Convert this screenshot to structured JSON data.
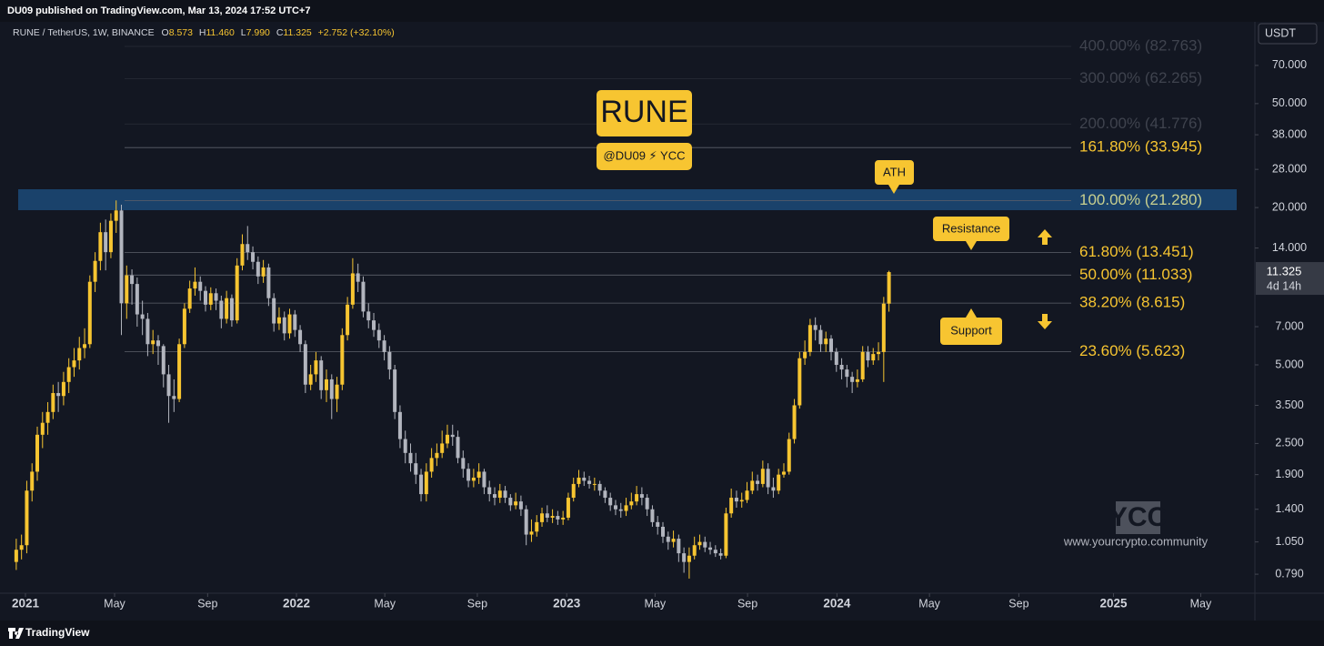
{
  "header": {
    "publisher": "DU09 published on TradingView.com, Mar 13, 2024 17:52 UTC+7"
  },
  "chart_data": {
    "type": "candlestick",
    "symbol": "RUNE / TetherUS, 1W, BINANCE",
    "ohlc_legend": [
      {
        "key": "O",
        "text": "8.573"
      },
      {
        "key": "H",
        "text": "11.460"
      },
      {
        "key": "L",
        "text": "7.990"
      },
      {
        "key": "C",
        "text": "11.325"
      }
    ],
    "change": "+2.752 (+32.10%)",
    "currency": "USDT",
    "up_color": "#f7c531",
    "down_color": "#b2b5be",
    "log_scale": true,
    "ylim": [
      0.668,
      102.8
    ],
    "yticks": [
      {
        "value": 70,
        "label": "70.000"
      },
      {
        "value": 50,
        "label": "50.000"
      },
      {
        "value": 38,
        "label": "38.000"
      },
      {
        "value": 28,
        "label": "28.000"
      },
      {
        "value": 20,
        "label": "20.000"
      },
      {
        "value": 14,
        "label": "14.000"
      },
      {
        "value": 7,
        "label": "7.000"
      },
      {
        "value": 5,
        "label": "5.000"
      },
      {
        "value": 3.5,
        "label": "3.500"
      },
      {
        "value": 2.5,
        "label": "2.500"
      },
      {
        "value": 1.9,
        "label": "1.900"
      },
      {
        "value": 1.4,
        "label": "1.400"
      },
      {
        "value": 1.05,
        "label": "1.050"
      },
      {
        "value": 0.79,
        "label": "0.790"
      }
    ],
    "last_price": 11.325,
    "countdown": "4d 14h",
    "xlim": [
      -2.4,
      235.6
    ],
    "xticks": [
      {
        "value": 1.75,
        "label": "2021"
      },
      {
        "value": 18.7,
        "label": "May"
      },
      {
        "value": 36.4,
        "label": "Sep"
      },
      {
        "value": 53.3,
        "label": "2022"
      },
      {
        "value": 70.1,
        "label": "May"
      },
      {
        "value": 87.7,
        "label": "Sep"
      },
      {
        "value": 104.7,
        "label": "2023"
      },
      {
        "value": 121.5,
        "label": "May"
      },
      {
        "value": 139.1,
        "label": "Sep"
      },
      {
        "value": 156.1,
        "label": "2024"
      },
      {
        "value": 173.7,
        "label": "May"
      },
      {
        "value": 190.7,
        "label": "Sep"
      },
      {
        "value": 208.7,
        "label": "2025"
      },
      {
        "value": 225.3,
        "label": "May"
      }
    ],
    "open": [
      0.88,
      0.98,
      1.02,
      1.65,
      1.95,
      2.7,
      3.0,
      3.3,
      3.9,
      3.8,
      4.3,
      4.9,
      5.2,
      5.8,
      6.0,
      10.4,
      12.5,
      16.1,
      13.5,
      17.8,
      19.5,
      8.6,
      11.0,
      10.2,
      7.8,
      7.5,
      6.0,
      6.2,
      5.9,
      4.6,
      3.8,
      3.7,
      6.0,
      8.2,
      9.8,
      10.4,
      9.6,
      8.5,
      9.4,
      8.8,
      7.5,
      9.0,
      7.4,
      12.0,
      14.5,
      13.5,
      12.4,
      10.9,
      11.8,
      9.0,
      7.2,
      7.6,
      6.6,
      7.8,
      6.8,
      6.0,
      4.2,
      4.6,
      5.2,
      4.0,
      4.4,
      3.7,
      4.2,
      6.5,
      8.5,
      11.2,
      10.4,
      8.0,
      7.4,
      6.8,
      6.2,
      5.6,
      4.8,
      3.3,
      2.6,
      2.3,
      2.1,
      1.9,
      1.6,
      1.95,
      2.2,
      2.3,
      2.5,
      2.7,
      2.65,
      2.2,
      2.0,
      1.8,
      1.85,
      1.95,
      1.7,
      1.6,
      1.55,
      1.65,
      1.55,
      1.45,
      1.5,
      1.4,
      1.12,
      1.15,
      1.25,
      1.35,
      1.3,
      1.32,
      1.28,
      1.3,
      1.55,
      1.75,
      1.85,
      1.8,
      1.75,
      1.75,
      1.65,
      1.55,
      1.45,
      1.4,
      1.38,
      1.45,
      1.5,
      1.6,
      1.55,
      1.4,
      1.25,
      1.2,
      1.1,
      1.05,
      1.08,
      0.95,
      0.88,
      0.93,
      1.02,
      1.05,
      1.0,
      0.98,
      0.95,
      0.93,
      1.35,
      1.55,
      1.5,
      1.52,
      1.65,
      1.8,
      1.75,
      2.0,
      1.7,
      1.65,
      1.9,
      1.95,
      2.6,
      3.5,
      5.3,
      5.6,
      7.1,
      6.8,
      6.0,
      6.3,
      5.6,
      5.0,
      4.8,
      4.5,
      4.3,
      4.4,
      5.6,
      5.2,
      5.5,
      5.6,
      8.573
    ],
    "high": [
      1.08,
      1.12,
      1.8,
      2.1,
      2.9,
      3.3,
      3.6,
      4.2,
      4.3,
      4.7,
      5.3,
      5.8,
      6.4,
      6.9,
      11.0,
      13.5,
      17.5,
      18.0,
      19.0,
      21.3,
      20.5,
      12.0,
      11.6,
      10.8,
      8.8,
      7.9,
      6.8,
      6.5,
      6.0,
      5.0,
      4.4,
      6.3,
      8.6,
      10.5,
      11.8,
      10.9,
      10.0,
      9.9,
      9.8,
      9.2,
      9.6,
      9.3,
      12.8,
      15.8,
      17.0,
      14.2,
      13.0,
      12.6,
      12.2,
      9.4,
      8.3,
      8.0,
      8.2,
      8.1,
      7.1,
      6.2,
      5.0,
      5.6,
      5.4,
      4.8,
      4.6,
      4.5,
      6.9,
      9.1,
      12.8,
      12.2,
      10.9,
      8.6,
      7.9,
      7.2,
      6.5,
      5.9,
      5.0,
      3.5,
      2.8,
      2.5,
      2.3,
      2.0,
      2.1,
      2.4,
      2.5,
      2.8,
      2.95,
      2.95,
      2.8,
      2.35,
      2.1,
      2.0,
      2.1,
      2.0,
      1.8,
      1.7,
      1.75,
      1.72,
      1.6,
      1.62,
      1.58,
      1.45,
      1.28,
      1.33,
      1.42,
      1.45,
      1.4,
      1.38,
      1.38,
      1.62,
      1.85,
      1.98,
      1.95,
      1.88,
      1.85,
      1.8,
      1.7,
      1.62,
      1.52,
      1.48,
      1.55,
      1.62,
      1.72,
      1.7,
      1.6,
      1.45,
      1.32,
      1.25,
      1.15,
      1.16,
      1.12,
      1.0,
      1.0,
      1.1,
      1.12,
      1.1,
      1.05,
      1.02,
      0.99,
      1.42,
      1.68,
      1.65,
      1.62,
      1.78,
      1.95,
      1.9,
      2.15,
      2.1,
      1.85,
      2.0,
      2.1,
      2.75,
      3.7,
      5.6,
      6.2,
      7.5,
      7.6,
      7.1,
      6.7,
      6.5,
      5.8,
      5.3,
      5.0,
      4.7,
      4.8,
      5.9,
      5.9,
      5.8,
      6.1,
      9.1,
      11.46
    ],
    "low": [
      0.82,
      0.9,
      0.95,
      1.5,
      1.8,
      2.4,
      2.7,
      3.1,
      3.3,
      3.5,
      3.9,
      4.5,
      4.8,
      5.3,
      5.8,
      9.5,
      11.5,
      11.5,
      12.8,
      16.0,
      6.5,
      7.5,
      8.5,
      7.0,
      6.5,
      5.4,
      5.5,
      5.0,
      4.1,
      3.0,
      3.3,
      3.6,
      5.8,
      7.9,
      9.2,
      8.8,
      8.0,
      8.1,
      8.1,
      6.9,
      7.2,
      7.0,
      7.2,
      11.5,
      12.6,
      11.6,
      10.2,
      10.3,
      8.4,
      6.7,
      6.8,
      6.2,
      6.3,
      6.4,
      5.6,
      3.9,
      4.0,
      4.3,
      3.7,
      3.6,
      3.1,
      3.3,
      4.0,
      6.2,
      8.2,
      9.5,
      7.6,
      6.9,
      6.4,
      5.8,
      5.2,
      4.4,
      3.1,
      2.4,
      2.1,
      1.95,
      1.75,
      1.5,
      1.5,
      1.85,
      2.05,
      2.2,
      2.4,
      2.45,
      2.1,
      1.85,
      1.7,
      1.7,
      1.75,
      1.6,
      1.5,
      1.45,
      1.48,
      1.48,
      1.38,
      1.4,
      1.32,
      1.02,
      1.05,
      1.1,
      1.2,
      1.25,
      1.24,
      1.22,
      1.22,
      1.27,
      1.5,
      1.7,
      1.72,
      1.68,
      1.65,
      1.58,
      1.48,
      1.38,
      1.33,
      1.3,
      1.32,
      1.4,
      1.45,
      1.45,
      1.32,
      1.2,
      1.12,
      1.04,
      0.98,
      1.0,
      0.88,
      0.8,
      0.76,
      0.9,
      0.98,
      0.96,
      0.94,
      0.92,
      0.9,
      0.91,
      1.3,
      1.42,
      1.42,
      1.48,
      1.6,
      1.65,
      1.7,
      1.6,
      1.55,
      1.6,
      1.85,
      1.9,
      2.5,
      3.4,
      5.0,
      5.4,
      6.2,
      5.6,
      5.6,
      5.2,
      4.7,
      4.4,
      4.1,
      3.9,
      4.1,
      4.3,
      4.9,
      5.0,
      5.2,
      4.3,
      7.99
    ],
    "close": [
      0.98,
      1.02,
      1.65,
      1.95,
      2.7,
      3.0,
      3.3,
      3.9,
      3.8,
      4.3,
      4.9,
      5.2,
      5.8,
      6.0,
      10.4,
      12.5,
      16.1,
      13.5,
      17.8,
      19.5,
      8.6,
      11.0,
      10.2,
      7.8,
      7.5,
      6.0,
      6.2,
      5.9,
      4.6,
      3.8,
      3.7,
      6.0,
      8.2,
      9.8,
      10.4,
      9.6,
      8.5,
      9.4,
      8.8,
      7.5,
      9.0,
      7.4,
      12.0,
      14.5,
      13.5,
      12.4,
      10.9,
      11.8,
      9.0,
      7.2,
      7.6,
      6.6,
      7.8,
      6.8,
      6.0,
      4.2,
      4.6,
      5.2,
      4.0,
      4.4,
      3.7,
      4.2,
      6.5,
      8.5,
      11.2,
      10.4,
      8.0,
      7.4,
      6.8,
      6.2,
      5.6,
      4.8,
      3.3,
      2.6,
      2.3,
      2.1,
      1.9,
      1.6,
      1.95,
      2.2,
      2.3,
      2.5,
      2.7,
      2.65,
      2.2,
      2.0,
      1.8,
      1.85,
      1.95,
      1.7,
      1.6,
      1.55,
      1.65,
      1.55,
      1.45,
      1.5,
      1.4,
      1.12,
      1.15,
      1.25,
      1.35,
      1.3,
      1.32,
      1.28,
      1.3,
      1.55,
      1.75,
      1.85,
      1.8,
      1.75,
      1.75,
      1.65,
      1.55,
      1.45,
      1.4,
      1.38,
      1.45,
      1.5,
      1.6,
      1.55,
      1.4,
      1.25,
      1.2,
      1.1,
      1.05,
      1.08,
      0.95,
      0.88,
      0.93,
      1.02,
      1.05,
      1.0,
      0.98,
      0.95,
      0.93,
      1.35,
      1.55,
      1.5,
      1.52,
      1.65,
      1.8,
      1.75,
      2.0,
      1.7,
      1.65,
      1.9,
      1.95,
      2.6,
      3.5,
      5.3,
      5.6,
      7.1,
      6.8,
      6.0,
      6.3,
      5.6,
      5.0,
      4.8,
      4.5,
      4.3,
      4.4,
      5.6,
      5.2,
      5.5,
      5.6,
      8.573,
      11.325
    ],
    "fib_levels": [
      {
        "label": "400.00% (82.763)",
        "value": 82.763,
        "color": "#3f434e"
      },
      {
        "label": "300.00% (62.265)",
        "value": 62.265,
        "color": "#3f434e"
      },
      {
        "label": "200.00% (41.776)",
        "value": 41.776,
        "color": "#3f434e"
      },
      {
        "label": "161.80% (33.945)",
        "value": 33.945,
        "color": "#f7c531"
      },
      {
        "label": "100.00% (21.280)",
        "value": 21.28,
        "color": "#c9d08f"
      },
      {
        "label": "61.80% (13.451)",
        "value": 13.451,
        "color": "#f7c531"
      },
      {
        "label": "50.00% (11.033)",
        "value": 11.033,
        "color": "#f7c531"
      },
      {
        "label": "38.20% (8.615)",
        "value": 8.615,
        "color": "#f7c531"
      },
      {
        "label": "23.60% (5.623)",
        "value": 5.623,
        "color": "#f7c531"
      }
    ],
    "annotations": {
      "title": "RUNE",
      "byline": "@DU09 ⚡ YCC",
      "ath": "ATH",
      "resistance": "Resistance",
      "support": "Support"
    },
    "watermark": {
      "logo": "YCC",
      "url": "www.yourcrypto.community"
    }
  },
  "footer": {
    "brand": "TradingView"
  }
}
